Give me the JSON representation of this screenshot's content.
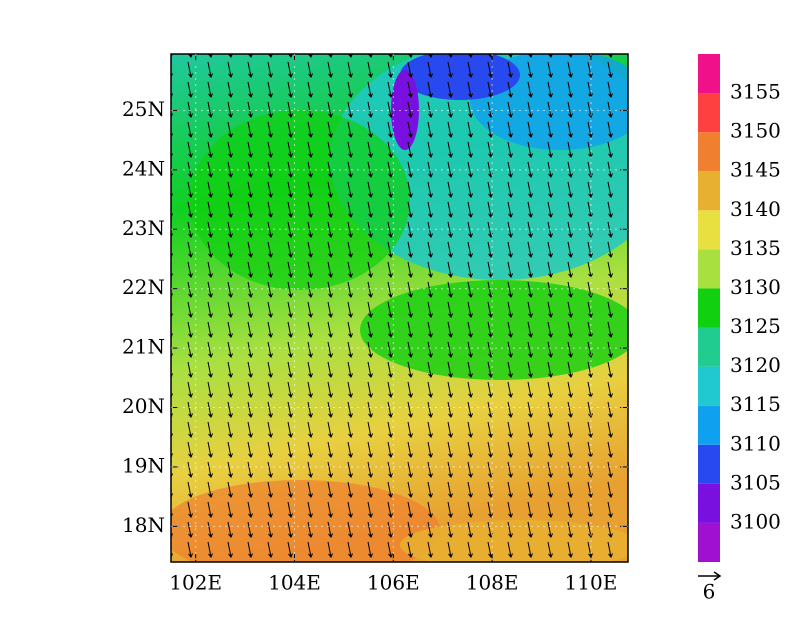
{
  "map": {
    "lonlim": [
      101.5,
      110.75
    ],
    "latlim": [
      17.4,
      25.95
    ],
    "lon_ticks": [
      {
        "value": 102,
        "label": "102E"
      },
      {
        "value": 104,
        "label": "104E"
      },
      {
        "value": 106,
        "label": "106E"
      },
      {
        "value": 108,
        "label": "108E"
      },
      {
        "value": 110,
        "label": "110E"
      }
    ],
    "lat_ticks": [
      {
        "value": 18,
        "label": "18N"
      },
      {
        "value": 19,
        "label": "19N"
      },
      {
        "value": 20,
        "label": "20N"
      },
      {
        "value": 21,
        "label": "21N"
      },
      {
        "value": 22,
        "label": "22N"
      },
      {
        "value": 23,
        "label": "23N"
      },
      {
        "value": 24,
        "label": "24N"
      },
      {
        "value": 25,
        "label": "25N"
      }
    ],
    "colorbar": {
      "levels": [
        3100,
        3105,
        3110,
        3115,
        3120,
        3125,
        3130,
        3135,
        3140,
        3145,
        3150,
        3155
      ],
      "colors": [
        "#a010d0",
        "#7a10e0",
        "#2848f0",
        "#10a0f0",
        "#20c8d0",
        "#20cc90",
        "#10d010",
        "#a8e040",
        "#e8e040",
        "#e8b030",
        "#f08030",
        "#ff4040",
        "#f0108a"
      ]
    },
    "reference_vector": 6
  }
}
